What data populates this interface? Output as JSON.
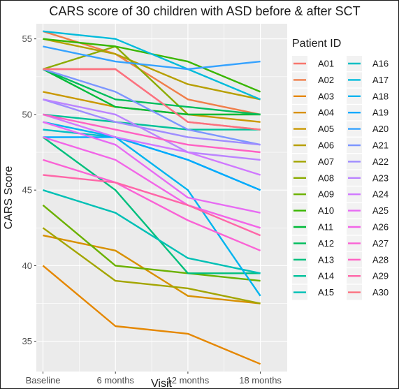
{
  "chart_data": {
    "type": "line",
    "title": "CARS score of 30 children with ASD before & after SCT",
    "xlabel": "Visit",
    "ylabel": "CARS Score",
    "categories": [
      "Baseline",
      "6 months",
      "12 months",
      "18 months"
    ],
    "ylim": [
      33,
      56
    ],
    "yticks": [
      35,
      40,
      45,
      50,
      55
    ],
    "grid": true,
    "legend": {
      "title": "Patient ID",
      "position": "right",
      "columns": 2
    },
    "series": [
      {
        "name": "A01",
        "color": "#F8766D",
        "values": [
          53,
          53,
          49.5,
          49
        ]
      },
      {
        "name": "A02",
        "color": "#F07E4A",
        "values": [
          55.5,
          54,
          51,
          50
        ]
      },
      {
        "name": "A03",
        "color": "#E58700",
        "values": [
          40,
          36,
          35.5,
          33.5
        ]
      },
      {
        "name": "A04",
        "color": "#D89000",
        "values": [
          42,
          41,
          38,
          37.5
        ]
      },
      {
        "name": "A05",
        "color": "#C99800",
        "values": [
          51.5,
          50.5,
          50,
          49.5
        ]
      },
      {
        "name": "A06",
        "color": "#B79F00",
        "values": [
          55,
          54,
          52,
          51
        ]
      },
      {
        "name": "A07",
        "color": "#A3A500",
        "values": [
          42.5,
          39,
          38.5,
          37.5
        ]
      },
      {
        "name": "A08",
        "color": "#8BAB00",
        "values": [
          53,
          54.5,
          50,
          50
        ]
      },
      {
        "name": "A09",
        "color": "#6BB100",
        "values": [
          44,
          40,
          39.5,
          39
        ]
      },
      {
        "name": "A10",
        "color": "#39B600",
        "values": [
          55,
          54.5,
          53.5,
          51.5
        ]
      },
      {
        "name": "A11",
        "color": "#00BA38",
        "values": [
          53,
          50.5,
          50,
          50
        ]
      },
      {
        "name": "A12",
        "color": "#00BD5C",
        "values": [
          53,
          51,
          50.5,
          50
        ]
      },
      {
        "name": "A13",
        "color": "#00BF7D",
        "values": [
          48.5,
          45,
          39.5,
          39.5
        ]
      },
      {
        "name": "A14",
        "color": "#00C19A",
        "values": [
          50,
          49.5,
          49,
          49
        ]
      },
      {
        "name": "A15",
        "color": "#00C0B5",
        "values": [
          45,
          43.5,
          40.5,
          39.5
        ]
      },
      {
        "name": "A16",
        "color": "#00BFC4",
        "values": [
          49,
          48.5,
          47,
          45
        ]
      },
      {
        "name": "A17",
        "color": "#00BBDB",
        "values": [
          55.5,
          55,
          53,
          51
        ]
      },
      {
        "name": "A18",
        "color": "#00B4EF",
        "values": [
          49.5,
          48.5,
          45,
          38
        ]
      },
      {
        "name": "A19",
        "color": "#00A9FF",
        "values": [
          48.5,
          48.5,
          47,
          45
        ]
      },
      {
        "name": "A20",
        "color": "#35A2FF",
        "values": [
          54.5,
          53.5,
          53,
          53.5
        ]
      },
      {
        "name": "A21",
        "color": "#7C96FF",
        "values": [
          53,
          51.5,
          49,
          48
        ]
      },
      {
        "name": "A22",
        "color": "#9F8CFF",
        "values": [
          51,
          49.5,
          48.5,
          48
        ]
      },
      {
        "name": "A23",
        "color": "#BB84FF",
        "values": [
          51,
          50,
          47.5,
          47
        ]
      },
      {
        "name": "A24",
        "color": "#D078FF",
        "values": [
          50,
          48.5,
          47.5,
          46
        ]
      },
      {
        "name": "A25",
        "color": "#E76BF3",
        "values": [
          49.5,
          48,
          44.5,
          43.5
        ]
      },
      {
        "name": "A26",
        "color": "#F265E7",
        "values": [
          48.5,
          47,
          44,
          42.5
        ]
      },
      {
        "name": "A27",
        "color": "#FA62D5",
        "values": [
          47,
          45.5,
          43,
          41
        ]
      },
      {
        "name": "A28",
        "color": "#FF61C3",
        "values": [
          50,
          49,
          48,
          47.5
        ]
      },
      {
        "name": "A29",
        "color": "#FF66A8",
        "values": [
          46,
          45.5,
          44,
          42
        ]
      },
      {
        "name": "A30",
        "color": "#FC717F",
        "values": [
          53,
          53,
          49.5,
          49
        ]
      }
    ]
  }
}
